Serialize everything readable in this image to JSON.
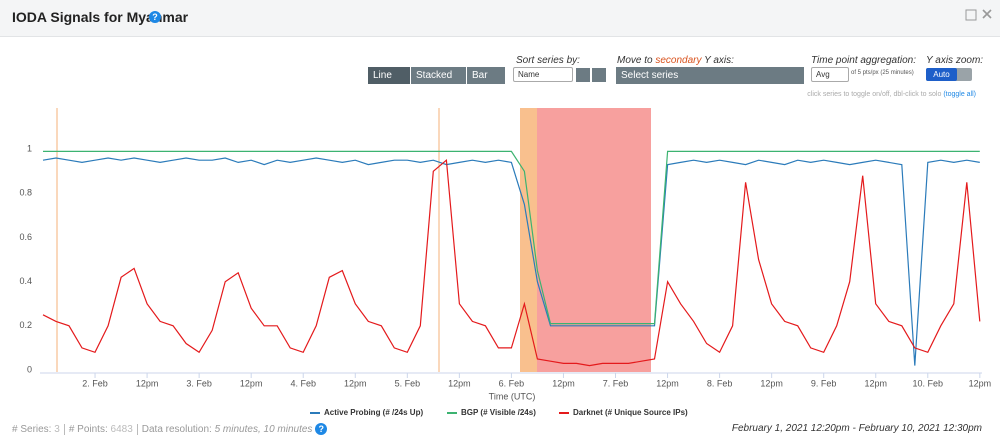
{
  "header": {
    "title": "IODA Signals for Myanmar"
  },
  "toolbar": {
    "chart_modes": [
      "Line",
      "Stacked",
      "Bar"
    ],
    "sort_label": "Sort series by:",
    "sort_value": "Name",
    "secondary_label": [
      "Move to ",
      "secondary",
      " Y axis:"
    ],
    "secondary_placeholder": "Select series",
    "aggregation_label": "Time point aggregation:",
    "aggregation_value": "Avg",
    "aggregation_note": "of 5 pts/px (25 minutes)",
    "zoom_label": "Y axis zoom:",
    "zoom_value": "Auto",
    "hint": "click series to toggle on/off, dbl-click to solo ",
    "hint_link": "(toggle all)"
  },
  "footer": {
    "series_label": "# Series:",
    "series_count": 3,
    "points_label": "# Points:",
    "points_count": 6483,
    "resolution_label": "Data resolution:",
    "resolution_value": "5 minutes, 10 minutes",
    "range": "February 1, 2021 12:20pm - February 10, 2021 12:30pm"
  },
  "chart_data": {
    "type": "line",
    "x_label": "Time (UTC)",
    "xlim": [
      "2021-02-01 12:00",
      "2021-02-10 12:30"
    ],
    "xticks": [
      {
        "value": "2021-02-02 00:00",
        "label": "2. Feb"
      },
      {
        "value": "2021-02-02 12:00",
        "label": "12pm"
      },
      {
        "value": "2021-02-03 00:00",
        "label": "3. Feb"
      },
      {
        "value": "2021-02-03 12:00",
        "label": "12pm"
      },
      {
        "value": "2021-02-04 00:00",
        "label": "4. Feb"
      },
      {
        "value": "2021-02-04 12:00",
        "label": "12pm"
      },
      {
        "value": "2021-02-05 00:00",
        "label": "5. Feb"
      },
      {
        "value": "2021-02-05 12:00",
        "label": "12pm"
      },
      {
        "value": "2021-02-06 00:00",
        "label": "6. Feb"
      },
      {
        "value": "2021-02-06 12:00",
        "label": "12pm"
      },
      {
        "value": "2021-02-07 00:00",
        "label": "7. Feb"
      },
      {
        "value": "2021-02-07 12:00",
        "label": "12pm"
      },
      {
        "value": "2021-02-08 00:00",
        "label": "8. Feb"
      },
      {
        "value": "2021-02-08 12:00",
        "label": "12pm"
      },
      {
        "value": "2021-02-09 00:00",
        "label": "9. Feb"
      },
      {
        "value": "2021-02-09 12:00",
        "label": "12pm"
      },
      {
        "value": "2021-02-10 00:00",
        "label": "10. Feb"
      },
      {
        "value": "2021-02-10 12:00",
        "label": "12pm"
      }
    ],
    "ylim": [
      0,
      1.2
    ],
    "yticks": [
      0,
      0.2,
      0.4,
      0.6,
      0.8,
      1
    ],
    "grid": false,
    "x": [
      "2021-02-01 12:00",
      "2021-02-01 15:00",
      "2021-02-01 18:00",
      "2021-02-01 21:00",
      "2021-02-02 00:00",
      "2021-02-02 03:00",
      "2021-02-02 06:00",
      "2021-02-02 09:00",
      "2021-02-02 12:00",
      "2021-02-02 15:00",
      "2021-02-02 18:00",
      "2021-02-02 21:00",
      "2021-02-03 00:00",
      "2021-02-03 03:00",
      "2021-02-03 06:00",
      "2021-02-03 09:00",
      "2021-02-03 12:00",
      "2021-02-03 15:00",
      "2021-02-03 18:00",
      "2021-02-03 21:00",
      "2021-02-04 00:00",
      "2021-02-04 03:00",
      "2021-02-04 06:00",
      "2021-02-04 09:00",
      "2021-02-04 12:00",
      "2021-02-04 15:00",
      "2021-02-04 18:00",
      "2021-02-04 21:00",
      "2021-02-05 00:00",
      "2021-02-05 03:00",
      "2021-02-05 06:00",
      "2021-02-05 09:00",
      "2021-02-05 12:00",
      "2021-02-05 15:00",
      "2021-02-05 18:00",
      "2021-02-05 21:00",
      "2021-02-06 00:00",
      "2021-02-06 03:00",
      "2021-02-06 06:00",
      "2021-02-06 09:00",
      "2021-02-06 12:00",
      "2021-02-06 15:00",
      "2021-02-06 18:00",
      "2021-02-06 21:00",
      "2021-02-07 00:00",
      "2021-02-07 03:00",
      "2021-02-07 06:00",
      "2021-02-07 09:00",
      "2021-02-07 12:00",
      "2021-02-07 15:00",
      "2021-02-07 18:00",
      "2021-02-07 21:00",
      "2021-02-08 00:00",
      "2021-02-08 03:00",
      "2021-02-08 06:00",
      "2021-02-08 09:00",
      "2021-02-08 12:00",
      "2021-02-08 15:00",
      "2021-02-08 18:00",
      "2021-02-08 21:00",
      "2021-02-09 00:00",
      "2021-02-09 03:00",
      "2021-02-09 06:00",
      "2021-02-09 09:00",
      "2021-02-09 12:00",
      "2021-02-09 15:00",
      "2021-02-09 18:00",
      "2021-02-09 21:00",
      "2021-02-10 00:00",
      "2021-02-10 03:00",
      "2021-02-10 06:00",
      "2021-02-10 09:00",
      "2021-02-10 12:00"
    ],
    "series": [
      {
        "name": "Active Probing (# /24s Up)",
        "color": "#2b7bba",
        "values": [
          0.95,
          0.96,
          0.95,
          0.94,
          0.95,
          0.96,
          0.95,
          0.96,
          0.95,
          0.94,
          0.95,
          0.96,
          0.95,
          0.95,
          0.96,
          0.94,
          0.95,
          0.93,
          0.95,
          0.94,
          0.95,
          0.96,
          0.95,
          0.94,
          0.95,
          0.93,
          0.94,
          0.95,
          0.95,
          0.94,
          0.95,
          0.93,
          0.94,
          0.95,
          0.94,
          0.95,
          0.94,
          0.75,
          0.4,
          0.2,
          0.2,
          0.2,
          0.2,
          0.2,
          0.2,
          0.2,
          0.2,
          0.2,
          0.93,
          0.94,
          0.95,
          0.94,
          0.95,
          0.94,
          0.93,
          0.95,
          0.94,
          0.93,
          0.95,
          0.94,
          0.95,
          0.94,
          0.93,
          0.94,
          0.95,
          0.94,
          0.93,
          0.02,
          0.94,
          0.95,
          0.94,
          0.95,
          0.94
        ]
      },
      {
        "name": "BGP (# Visible /24s)",
        "color": "#3cb371",
        "values": [
          0.99,
          0.99,
          0.99,
          0.99,
          0.99,
          0.99,
          0.99,
          0.99,
          0.99,
          0.99,
          0.99,
          0.99,
          0.99,
          0.99,
          0.99,
          0.99,
          0.99,
          0.99,
          0.99,
          0.99,
          0.99,
          0.99,
          0.99,
          0.99,
          0.99,
          0.99,
          0.99,
          0.99,
          0.99,
          0.99,
          0.99,
          0.99,
          0.99,
          0.99,
          0.99,
          0.99,
          0.99,
          0.9,
          0.45,
          0.21,
          0.21,
          0.21,
          0.21,
          0.21,
          0.21,
          0.21,
          0.21,
          0.21,
          0.99,
          0.99,
          0.99,
          0.99,
          0.99,
          0.99,
          0.99,
          0.99,
          0.99,
          0.99,
          0.99,
          0.99,
          0.99,
          0.99,
          0.99,
          0.99,
          0.99,
          0.99,
          0.99,
          0.99,
          0.99,
          0.99,
          0.99,
          0.99,
          0.99
        ]
      },
      {
        "name": "Darknet (# Unique Source IPs)",
        "color": "#e41a1c",
        "values": [
          0.25,
          0.22,
          0.2,
          0.1,
          0.08,
          0.2,
          0.42,
          0.46,
          0.3,
          0.22,
          0.2,
          0.12,
          0.08,
          0.18,
          0.4,
          0.44,
          0.28,
          0.2,
          0.2,
          0.1,
          0.08,
          0.2,
          0.42,
          0.45,
          0.3,
          0.22,
          0.2,
          0.1,
          0.08,
          0.2,
          0.9,
          0.95,
          0.3,
          0.22,
          0.2,
          0.1,
          0.1,
          0.3,
          0.05,
          0.04,
          0.03,
          0.03,
          0.02,
          0.03,
          0.03,
          0.03,
          0.04,
          0.05,
          0.4,
          0.3,
          0.22,
          0.12,
          0.08,
          0.2,
          0.85,
          0.5,
          0.3,
          0.22,
          0.2,
          0.1,
          0.08,
          0.2,
          0.4,
          0.88,
          0.3,
          0.22,
          0.2,
          0.1,
          0.08,
          0.2,
          0.3,
          0.85,
          0.22
        ]
      }
    ]
  }
}
